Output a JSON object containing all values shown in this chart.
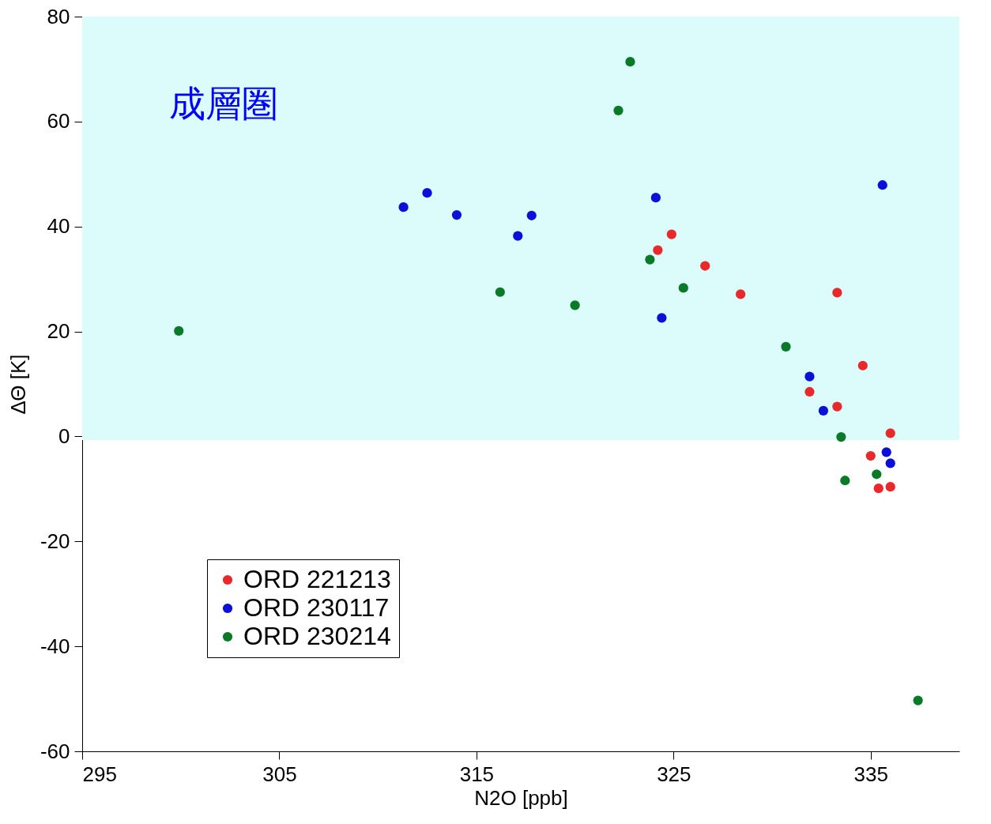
{
  "chart_data": {
    "type": "scatter",
    "xlabel": "N2O [ppb]",
    "ylabel": "ΔΘ [K]",
    "xlim": [
      295,
      339.5
    ],
    "xticks": [
      295,
      305,
      315,
      325,
      335
    ],
    "ylim": [
      -60,
      80
    ],
    "yticks": [
      -60,
      -40,
      -20,
      0,
      20,
      40,
      60,
      80
    ],
    "grid": false,
    "legend": "bottom left",
    "marker": "circle",
    "bands": [
      {
        "axis": "y",
        "from": -0.7,
        "to": 80,
        "label": "成層圏",
        "color": "#dcfcfc"
      }
    ],
    "series": [
      {
        "name": "ORD 221213",
        "color": "#e8282a",
        "x": [
          324.2,
          324.9,
          326.6,
          328.4,
          333.3,
          334.6,
          331.9,
          333.3,
          336.0,
          335.0,
          335.4,
          336.0
        ],
        "values": [
          35.5,
          38.5,
          32.5,
          27.1,
          27.4,
          13.5,
          8.5,
          5.7,
          0.6,
          -3.7,
          -9.9,
          -9.6
        ]
      },
      {
        "name": "ORD 230117",
        "color": "#0a10d8",
        "x": [
          311.3,
          312.5,
          314.0,
          317.1,
          317.8,
          324.1,
          324.4,
          335.6,
          331.9,
          332.6,
          335.8,
          336.0
        ],
        "values": [
          43.7,
          46.4,
          42.2,
          38.2,
          42.1,
          45.5,
          22.6,
          47.9,
          11.4,
          4.9,
          -3.0,
          -5.1
        ]
      },
      {
        "name": "ORD 230214",
        "color": "#0a7a28",
        "x": [
          299.9,
          322.8,
          322.2,
          323.8,
          325.5,
          316.2,
          320.0,
          330.7,
          333.5,
          333.7,
          335.3,
          337.4
        ],
        "values": [
          20.1,
          71.4,
          62.1,
          33.7,
          28.3,
          27.5,
          25.0,
          17.1,
          -0.1,
          -8.4,
          -7.2,
          -50.3
        ]
      }
    ]
  }
}
